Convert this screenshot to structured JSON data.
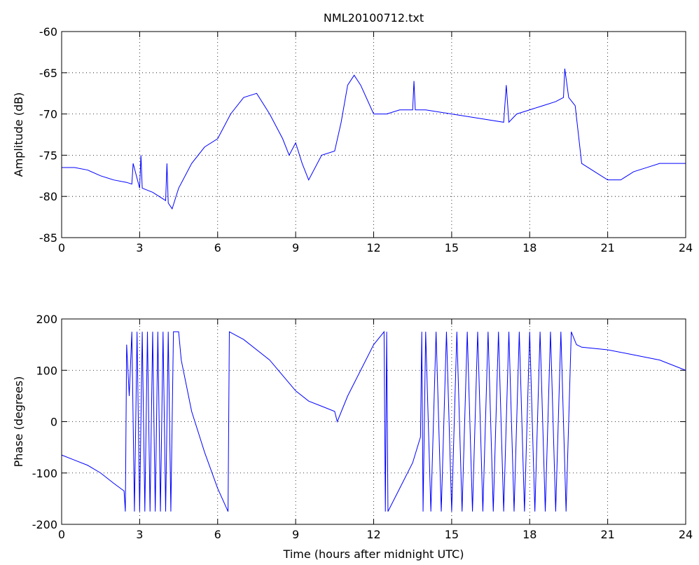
{
  "chart_data": [
    {
      "type": "line",
      "title": "NML20100712.txt",
      "ylabel": "Amplitude (dB)",
      "color": "#0000ff",
      "grid": true,
      "x": [
        0,
        0.5,
        1,
        1.5,
        2,
        2.5,
        2.7,
        2.75,
        3,
        3.05,
        3.1,
        3.5,
        4,
        4.05,
        4.1,
        4.25,
        4.5,
        5,
        5.5,
        6,
        6.5,
        7,
        7.5,
        8,
        8.5,
        8.75,
        9,
        9.25,
        9.5,
        10,
        10.5,
        10.75,
        11,
        11.25,
        11.5,
        12,
        12.5,
        13,
        13.5,
        13.55,
        13.6,
        14,
        15,
        16,
        17,
        17.1,
        17.2,
        17.5,
        18,
        18.5,
        19,
        19.3,
        19.35,
        19.5,
        19.75,
        20,
        20.5,
        21,
        21.5,
        22,
        22.5,
        23,
        24
      ],
      "values": [
        -76.5,
        -76.5,
        -76.8,
        -77.5,
        -78,
        -78.3,
        -78.5,
        -76,
        -79,
        -75,
        -79,
        -79.5,
        -80.5,
        -76,
        -80.8,
        -81.5,
        -79,
        -76,
        -74,
        -73,
        -70,
        -68,
        -67.5,
        -70,
        -73,
        -75,
        -73.5,
        -76,
        -78,
        -75,
        -74.5,
        -71,
        -66.5,
        -65.3,
        -66.5,
        -70,
        -70,
        -69.5,
        -69.5,
        -66,
        -69.5,
        -69.5,
        -70,
        -70.5,
        -71,
        -66.5,
        -71,
        -70,
        -69.5,
        -69,
        -68.5,
        -68,
        -64.5,
        -68,
        -69,
        -76,
        -77,
        -78,
        -78,
        -77,
        -76.5,
        -76,
        -76
      ],
      "xlim": [
        0,
        24
      ],
      "xticks": [
        0,
        3,
        6,
        9,
        12,
        15,
        18,
        21,
        24
      ],
      "ylim": [
        -85,
        -60
      ],
      "yticks": [
        -85,
        -80,
        -75,
        -70,
        -65,
        -60
      ]
    },
    {
      "type": "line",
      "xlabel": "Time (hours after midnight UTC)",
      "ylabel": "Phase (degrees)",
      "color": "#0000ff",
      "grid": true,
      "x": [
        0,
        0.5,
        1,
        1.5,
        2,
        2.4,
        2.45,
        2.5,
        2.6,
        2.7,
        2.8,
        2.9,
        3.0,
        3.1,
        3.2,
        3.3,
        3.4,
        3.5,
        3.6,
        3.7,
        3.8,
        3.9,
        4.0,
        4.1,
        4.2,
        4.3,
        4.5,
        4.6,
        5,
        5.5,
        6,
        6.4,
        6.45,
        7,
        8,
        8.5,
        9,
        9.5,
        10,
        10.5,
        10.6,
        11,
        11.5,
        12,
        12.4,
        12.45,
        12.5,
        12.55,
        12.6,
        13,
        13.5,
        13.8,
        13.85,
        13.9,
        14.0,
        14.2,
        14.4,
        14.6,
        14.8,
        15.0,
        15.2,
        15.4,
        15.6,
        15.8,
        16.0,
        16.2,
        16.4,
        16.6,
        16.8,
        17.0,
        17.2,
        17.4,
        17.6,
        17.8,
        18.0,
        18.2,
        18.4,
        18.6,
        18.8,
        19.0,
        19.2,
        19.4,
        19.6,
        19.8,
        20,
        21,
        22,
        23,
        24
      ],
      "values": [
        -65,
        -75,
        -85,
        -100,
        -120,
        -135,
        -175,
        150,
        50,
        175,
        -175,
        175,
        -175,
        175,
        -175,
        175,
        -175,
        175,
        -175,
        175,
        -175,
        175,
        -175,
        175,
        -175,
        175,
        175,
        120,
        20,
        -60,
        -130,
        -175,
        175,
        160,
        120,
        90,
        60,
        40,
        30,
        20,
        0,
        50,
        100,
        150,
        175,
        -175,
        175,
        -175,
        -170,
        -130,
        -80,
        -30,
        175,
        -175,
        175,
        -175,
        175,
        -175,
        175,
        -175,
        175,
        -175,
        175,
        -175,
        175,
        -175,
        175,
        -175,
        175,
        -175,
        175,
        -175,
        175,
        -175,
        175,
        -175,
        175,
        -175,
        175,
        -175,
        175,
        -175,
        175,
        150,
        145,
        140,
        130,
        120,
        100
      ],
      "xlim": [
        0,
        24
      ],
      "xticks": [
        0,
        3,
        6,
        9,
        12,
        15,
        18,
        21,
        24
      ],
      "ylim": [
        -200,
        200
      ],
      "yticks": [
        -200,
        -100,
        0,
        100,
        200
      ]
    }
  ]
}
